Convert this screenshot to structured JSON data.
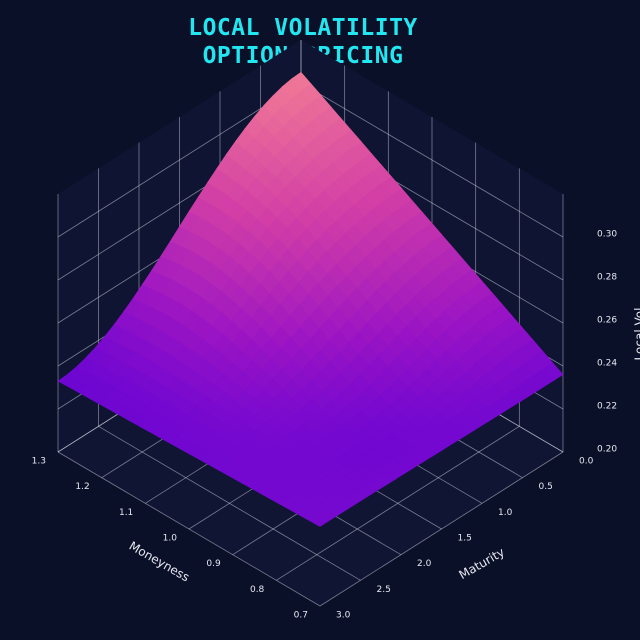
{
  "title_lines": [
    "LOCAL VOLATILITY",
    "OPTION PRICING"
  ],
  "chart_data": {
    "type": "surface3d",
    "title": "LOCAL VOLATILITY\nOPTION PRICING",
    "xlabel": "Moneyness",
    "ylabel": "Maturity",
    "zlabel": "Local Vol",
    "xlim": [
      0.7,
      1.3
    ],
    "ylim": [
      0.0,
      3.0
    ],
    "zlim": [
      0.2,
      0.32
    ],
    "xticks": [
      "0.7",
      "0.8",
      "0.9",
      "1.0",
      "1.1",
      "1.2",
      "1.3"
    ],
    "yticks": [
      "0.0",
      "0.5",
      "1.0",
      "1.5",
      "2.0",
      "2.5",
      "3.0"
    ],
    "zticks": [
      "0.20",
      "0.22",
      "0.24",
      "0.26",
      "0.28",
      "0.30"
    ],
    "corners": [
      {
        "moneyness": 1.3,
        "maturity": 0.0,
        "vol": 0.305
      },
      {
        "moneyness": 0.7,
        "maturity": 0.0,
        "vol": 0.236
      },
      {
        "moneyness": 1.3,
        "maturity": 3.0,
        "vol": 0.233
      },
      {
        "moneyness": 0.7,
        "maturity": 3.0,
        "vol": 0.237
      }
    ],
    "colormap": [
      "#5a00d8",
      "#9a14c4",
      "#d23ea6",
      "#f07896"
    ],
    "background": "#0b1029",
    "grid": true
  }
}
